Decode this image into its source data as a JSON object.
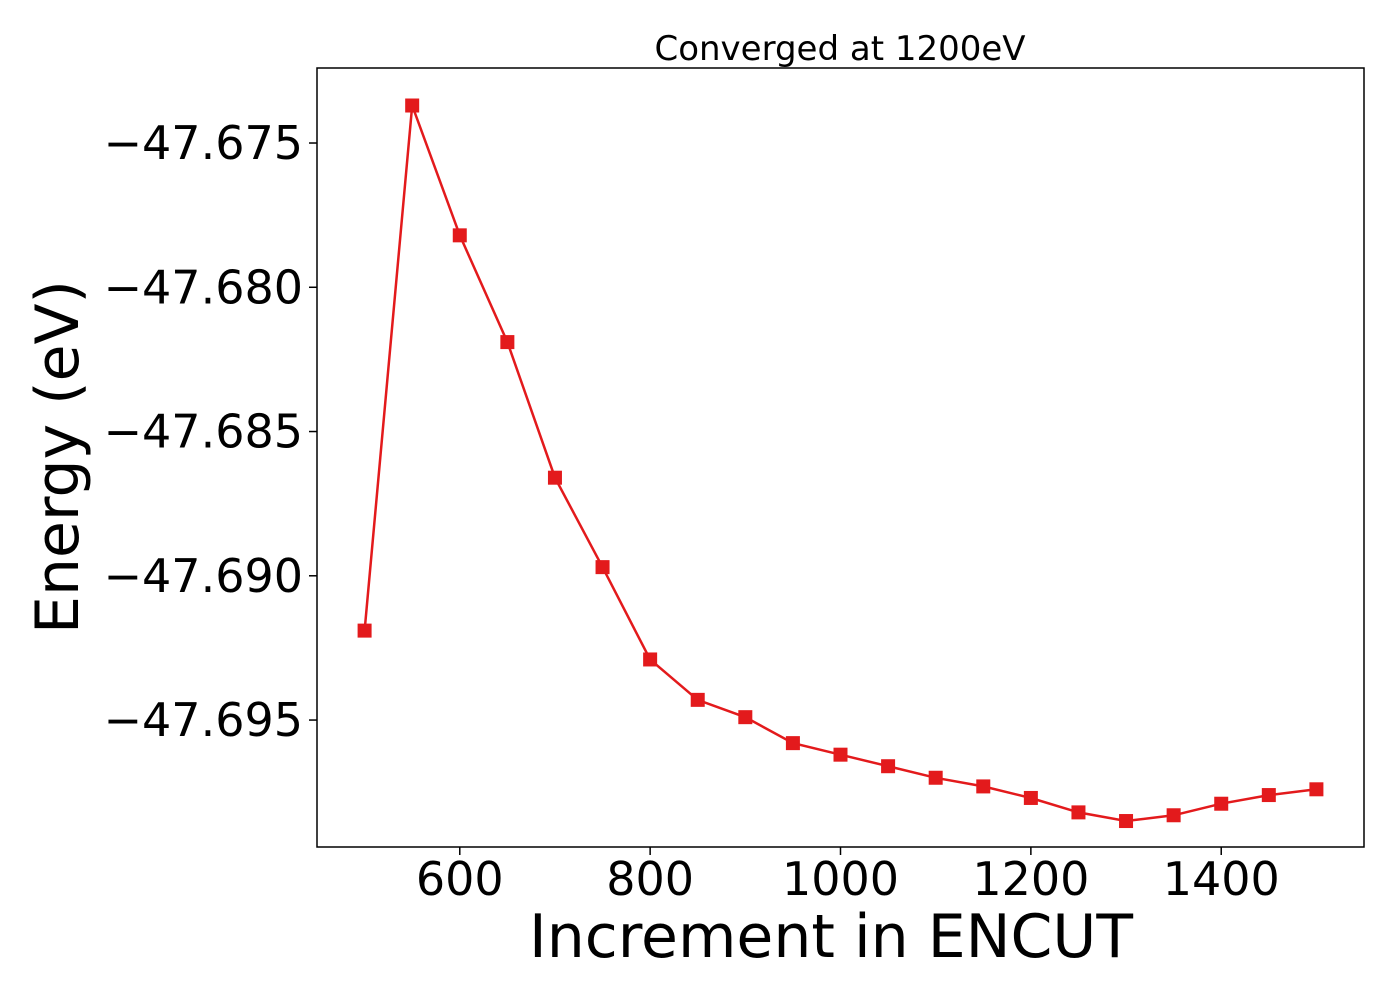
{
  "chart_data": {
    "type": "line",
    "title": "Converged at 1200eV",
    "xlabel": "Increment in ENCUT",
    "ylabel": "Energy (eV)",
    "xlim": [
      450,
      1550
    ],
    "ylim": [
      -47.6994,
      -47.6724
    ],
    "xticks": [
      600,
      800,
      1000,
      1200,
      1400
    ],
    "yticks": [
      -47.675,
      -47.68,
      -47.685,
      -47.69,
      -47.695
    ],
    "ytick_labels": [
      "−47.675",
      "−47.680",
      "−47.685",
      "−47.690",
      "−47.695"
    ],
    "grid": false,
    "series": [
      {
        "color": "#e31a1c",
        "marker": "square",
        "x": [
          500,
          550,
          600,
          650,
          700,
          750,
          800,
          850,
          900,
          950,
          1000,
          1050,
          1100,
          1150,
          1200,
          1250,
          1300,
          1350,
          1400,
          1450,
          1500
        ],
        "y": [
          -47.6919,
          -47.6737,
          -47.6782,
          -47.6819,
          -47.6866,
          -47.6897,
          -47.6929,
          -47.6943,
          -47.6949,
          -47.6958,
          -47.6962,
          -47.6966,
          -47.697,
          -47.6973,
          -47.6977,
          -47.6982,
          -47.6985,
          -47.6983,
          -47.6979,
          -47.6976,
          -47.6974
        ]
      }
    ]
  }
}
